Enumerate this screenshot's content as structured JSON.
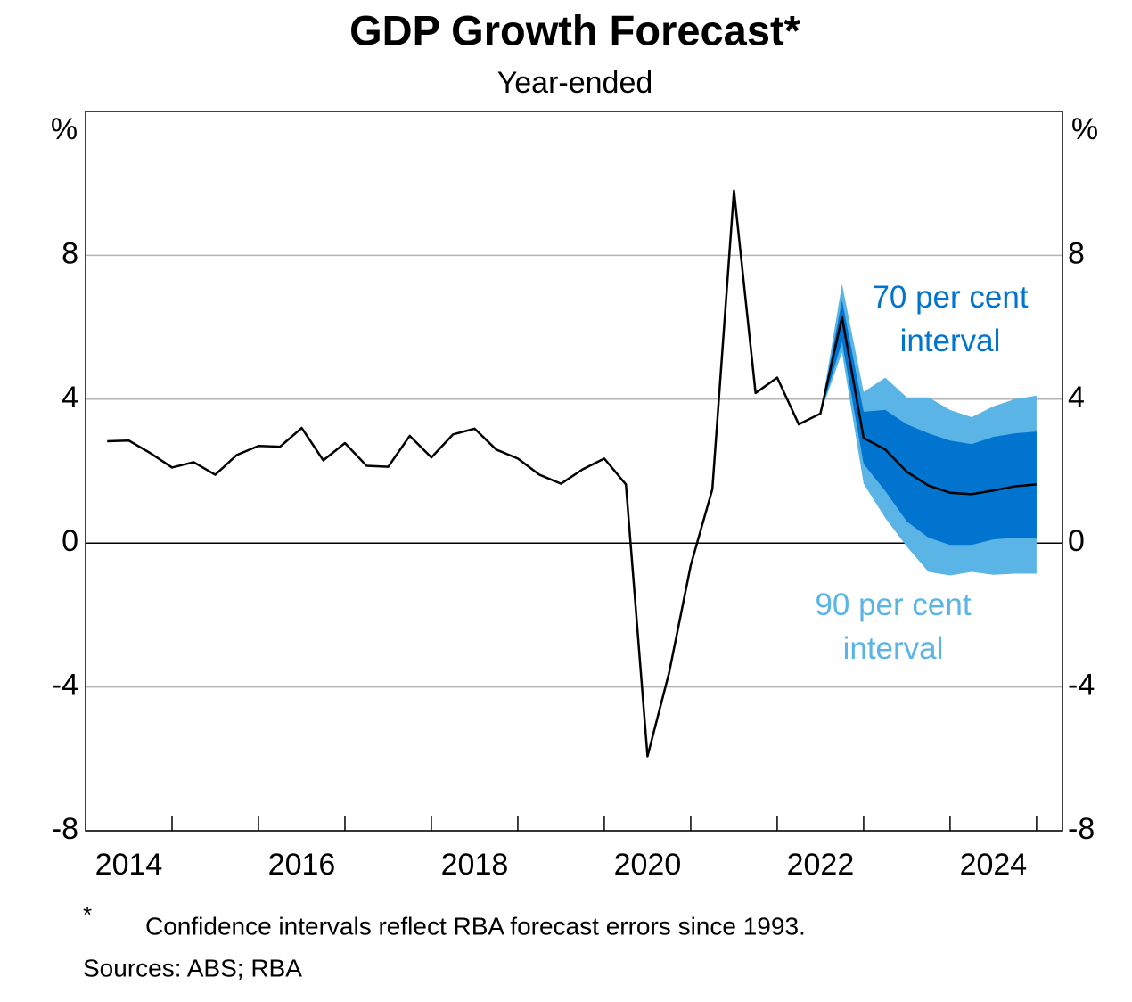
{
  "chart_data": {
    "type": "line",
    "title": "GDP Growth Forecast*",
    "subtitle": "Year-ended",
    "y_unit": "%",
    "x": [
      2014.25,
      2014.5,
      2014.75,
      2015.0,
      2015.25,
      2015.5,
      2015.75,
      2016.0,
      2016.25,
      2016.5,
      2016.75,
      2017.0,
      2017.25,
      2017.5,
      2017.75,
      2018.0,
      2018.25,
      2018.5,
      2018.75,
      2019.0,
      2019.25,
      2019.5,
      2019.75,
      2020.0,
      2020.25,
      2020.5,
      2020.75,
      2021.0,
      2021.25,
      2021.5,
      2021.75,
      2022.0,
      2022.25,
      2022.5,
      2022.75,
      2023.0,
      2023.25,
      2023.5,
      2023.75,
      2024.0,
      2024.25,
      2024.5,
      2024.75,
      2025.0
    ],
    "series": [
      {
        "color": "#000000",
        "values": [
          2.83,
          2.85,
          2.5,
          2.1,
          2.25,
          1.9,
          2.45,
          2.7,
          2.68,
          3.2,
          2.3,
          2.78,
          2.15,
          2.12,
          2.98,
          2.38,
          3.02,
          3.18,
          2.6,
          2.35,
          1.9,
          1.65,
          2.05,
          2.35,
          1.63,
          -5.93,
          -3.6,
          -0.62,
          1.5,
          9.8,
          4.17,
          4.6,
          3.3,
          3.6,
          6.28,
          2.92,
          2.6,
          1.98,
          1.6,
          1.4,
          1.36,
          1.46,
          1.58,
          1.63
        ]
      }
    ],
    "bands": [
      {
        "name": "90 per cent interval",
        "color": "#5ab4e5",
        "x": [
          2022.5,
          2022.75,
          2023.0,
          2023.25,
          2023.5,
          2023.75,
          2024.0,
          2024.25,
          2024.5,
          2024.75,
          2025.0
        ],
        "upper": [
          3.6,
          7.2,
          4.2,
          4.6,
          4.05,
          4.05,
          3.7,
          3.5,
          3.8,
          4.0,
          4.1
        ],
        "lower": [
          3.6,
          5.3,
          1.65,
          0.7,
          -0.1,
          -0.8,
          -0.9,
          -0.8,
          -0.88,
          -0.85,
          -0.85
        ]
      },
      {
        "name": "70 per cent interval",
        "color": "#0074cf",
        "x": [
          2022.5,
          2022.75,
          2023.0,
          2023.25,
          2023.5,
          2023.75,
          2024.0,
          2024.25,
          2024.5,
          2024.75,
          2025.0
        ],
        "upper": [
          3.6,
          6.75,
          3.65,
          3.7,
          3.3,
          3.05,
          2.85,
          2.75,
          2.95,
          3.05,
          3.1
        ],
        "lower": [
          3.6,
          5.6,
          2.2,
          1.45,
          0.6,
          0.15,
          -0.05,
          -0.05,
          0.1,
          0.15,
          0.15
        ]
      }
    ],
    "xlim": [
      2014.0,
      2025.3
    ],
    "xticks": [
      {
        "value": 2014.5,
        "label": "2014"
      },
      {
        "value": 2016.5,
        "label": "2016"
      },
      {
        "value": 2018.5,
        "label": "2018"
      },
      {
        "value": 2020.5,
        "label": "2020"
      },
      {
        "value": 2022.5,
        "label": "2022"
      },
      {
        "value": 2024.5,
        "label": "2024"
      }
    ],
    "xtick_marks": [
      2015,
      2016,
      2017,
      2018,
      2019,
      2020,
      2021,
      2022,
      2023,
      2024,
      2025
    ],
    "ylim": [
      -8,
      12
    ],
    "yticks": [
      -8,
      -4,
      0,
      4,
      8
    ],
    "y2lim": [
      -8,
      12
    ],
    "y2ticks": [
      -8,
      -4,
      0,
      4,
      8
    ],
    "grid": true,
    "footnote_marker": "*",
    "footnote": "Confidence intervals reflect RBA forecast errors since 1993.",
    "sources": "Sources: ABS; RBA"
  }
}
